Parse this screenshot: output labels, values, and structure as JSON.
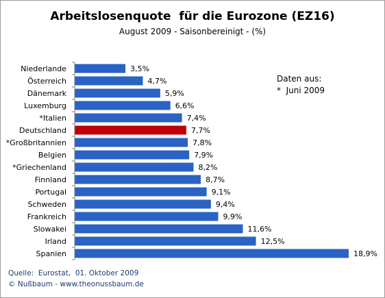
{
  "chart_data": {
    "type": "bar",
    "orientation": "horizontal",
    "title": "Arbeitslosenquote  für die Eurozone (EZ16)",
    "subtitle": "August 2009 - Saisonbereinigt - (%)",
    "categories": [
      "Niederlande",
      "Österreich",
      "Dänemark",
      "Luxemburg",
      "*Italien",
      "Deutschland",
      "*Großbritannien",
      "Belgien",
      "*Griechenland",
      "Finnland",
      "Portugal",
      "Schweden",
      "Frankreich",
      "Slowakei",
      "Irland",
      "Spanien"
    ],
    "values": [
      3.5,
      4.7,
      5.9,
      6.6,
      7.4,
      7.7,
      7.8,
      7.9,
      8.2,
      8.7,
      9.1,
      9.4,
      9.9,
      11.6,
      12.5,
      18.9
    ],
    "value_labels": [
      "3,5%",
      "4,7%",
      "5,9%",
      "6,6%",
      "7,4%",
      "7,7%",
      "7,8%",
      "7,9%",
      "8,2%",
      "8,7%",
      "9,1%",
      "9,4%",
      "9,9%",
      "11,6%",
      "12,5%",
      "18,9%"
    ],
    "bar_color": "#2a62c5",
    "highlight_color": "#c0000a",
    "highlight_category": "Deutschland",
    "xlim": [
      0,
      18.9
    ],
    "grid": false,
    "legend": "none",
    "annotation": [
      "Daten aus:",
      "*  Juni 2009"
    ]
  },
  "source": {
    "line1": "Quelle:  Eurostat,  01. Oktober 2009",
    "line2": "© Nußbaum - www.theonussbaum.de"
  }
}
